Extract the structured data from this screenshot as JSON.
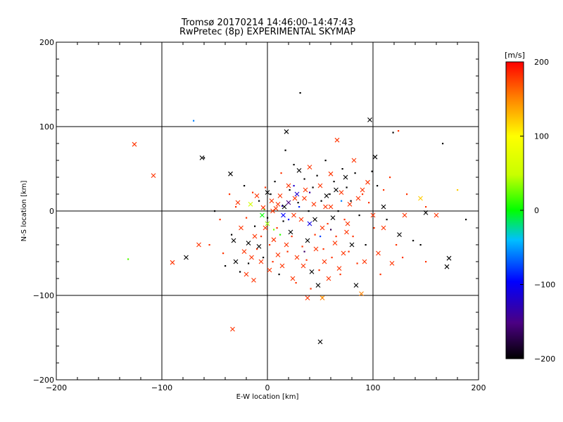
{
  "chart_data": {
    "type": "scatter",
    "title": "Tromsø 20170214 14:46:00–14:47:43",
    "subtitle": "RwPretec (8p) EXPERIMENTAL SKYMAP",
    "xlabel": "E-W location [km]",
    "ylabel": "N-S location [km]",
    "xlim": [
      -200,
      200
    ],
    "ylim": [
      -200,
      200
    ],
    "x_ticks": [
      -200,
      -100,
      0,
      100,
      200
    ],
    "y_ticks": [
      -200,
      -100,
      0,
      100,
      200
    ],
    "x_tick_labels": [
      "−200",
      "−100",
      "0",
      "100",
      "200"
    ],
    "y_tick_labels": [
      "−200",
      "−100",
      "0",
      "100",
      "200"
    ],
    "grid_lines": [
      -100,
      0,
      100
    ],
    "grid": true,
    "colorbar": {
      "label": "[m/s]",
      "range": [
        -200,
        200
      ],
      "ticks": [
        -200,
        -100,
        0,
        100,
        200
      ],
      "tick_labels": [
        "−200",
        "−100",
        "0",
        "100",
        "200"
      ],
      "colormap": [
        "#000000",
        "#4b0082",
        "#0000ff",
        "#00bfff",
        "#00ff00",
        "#c8ff00",
        "#ffff00",
        "#ff8000",
        "#ff0000"
      ]
    },
    "markers_large": [
      {
        "x": -126,
        "y": 79,
        "v": 180
      },
      {
        "x": -108,
        "y": 42,
        "v": 180
      },
      {
        "x": -90,
        "y": -61,
        "v": 180
      },
      {
        "x": -77,
        "y": -55,
        "v": -200
      },
      {
        "x": -65,
        "y": -40,
        "v": 180
      },
      {
        "x": -35,
        "y": 44,
        "v": -200
      },
      {
        "x": -33,
        "y": -140,
        "v": 180
      },
      {
        "x": -32,
        "y": -35,
        "v": -200
      },
      {
        "x": -30,
        "y": -60,
        "v": -200
      },
      {
        "x": -28,
        "y": 10,
        "v": 180
      },
      {
        "x": -25,
        "y": -20,
        "v": 180
      },
      {
        "x": -22,
        "y": -48,
        "v": 180
      },
      {
        "x": -20,
        "y": -75,
        "v": 180
      },
      {
        "x": -18,
        "y": -38,
        "v": -200
      },
      {
        "x": -16,
        "y": 8,
        "v": 60
      },
      {
        "x": -15,
        "y": -55,
        "v": 180
      },
      {
        "x": -13,
        "y": -82,
        "v": 180
      },
      {
        "x": -12,
        "y": -30,
        "v": 180
      },
      {
        "x": -10,
        "y": 18,
        "v": 180
      },
      {
        "x": -8,
        "y": -42,
        "v": -200
      },
      {
        "x": -6,
        "y": -60,
        "v": 180
      },
      {
        "x": -4,
        "y": 4,
        "v": 180
      },
      {
        "x": -2,
        "y": -20,
        "v": 180
      },
      {
        "x": 0,
        "y": 22,
        "v": -200
      },
      {
        "x": 2,
        "y": -70,
        "v": 180
      },
      {
        "x": 4,
        "y": 12,
        "v": 180
      },
      {
        "x": 6,
        "y": -34,
        "v": 180
      },
      {
        "x": 8,
        "y": 3,
        "v": 180
      },
      {
        "x": 10,
        "y": -52,
        "v": 180
      },
      {
        "x": 12,
        "y": 18,
        "v": 180
      },
      {
        "x": 14,
        "y": -65,
        "v": 180
      },
      {
        "x": 16,
        "y": 5,
        "v": -200
      },
      {
        "x": 18,
        "y": -40,
        "v": 180
      },
      {
        "x": 20,
        "y": 30,
        "v": 180
      },
      {
        "x": 22,
        "y": -25,
        "v": -200
      },
      {
        "x": 24,
        "y": -80,
        "v": 180
      },
      {
        "x": 26,
        "y": 15,
        "v": 180
      },
      {
        "x": 28,
        "y": -55,
        "v": 180
      },
      {
        "x": 30,
        "y": 48,
        "v": -200
      },
      {
        "x": 32,
        "y": -10,
        "v": 180
      },
      {
        "x": 34,
        "y": -65,
        "v": 180
      },
      {
        "x": 36,
        "y": 25,
        "v": 180
      },
      {
        "x": 38,
        "y": -35,
        "v": -200
      },
      {
        "x": 40,
        "y": 52,
        "v": 180
      },
      {
        "x": 42,
        "y": -72,
        "v": -200
      },
      {
        "x": 44,
        "y": 8,
        "v": 180
      },
      {
        "x": 46,
        "y": -45,
        "v": 180
      },
      {
        "x": 48,
        "y": -88,
        "v": -200
      },
      {
        "x": 50,
        "y": 30,
        "v": 180
      },
      {
        "x": 52,
        "y": -20,
        "v": 180
      },
      {
        "x": 54,
        "y": -60,
        "v": 180
      },
      {
        "x": 56,
        "y": 18,
        "v": -200
      },
      {
        "x": 58,
        "y": -80,
        "v": 180
      },
      {
        "x": 60,
        "y": 44,
        "v": 180
      },
      {
        "x": 62,
        "y": -8,
        "v": -200
      },
      {
        "x": 64,
        "y": -38,
        "v": 180
      },
      {
        "x": 66,
        "y": 84,
        "v": 180
      },
      {
        "x": 68,
        "y": -68,
        "v": 180
      },
      {
        "x": 70,
        "y": 22,
        "v": 180
      },
      {
        "x": 72,
        "y": -50,
        "v": 180
      },
      {
        "x": 74,
        "y": 40,
        "v": -200
      },
      {
        "x": 76,
        "y": -15,
        "v": 180
      },
      {
        "x": 78,
        "y": 8,
        "v": 180
      },
      {
        "x": 80,
        "y": -40,
        "v": -200
      },
      {
        "x": 82,
        "y": 60,
        "v": 180
      },
      {
        "x": 84,
        "y": -88,
        "v": -200
      },
      {
        "x": 86,
        "y": 15,
        "v": 180
      },
      {
        "x": 89,
        "y": -98,
        "v": 150
      },
      {
        "x": 92,
        "y": -60,
        "v": 180
      },
      {
        "x": 95,
        "y": 34,
        "v": 180
      },
      {
        "x": 97,
        "y": 108,
        "v": -200
      },
      {
        "x": 100,
        "y": -5,
        "v": 180
      },
      {
        "x": 102,
        "y": 64,
        "v": -200
      },
      {
        "x": 105,
        "y": -50,
        "v": 180
      },
      {
        "x": 110,
        "y": 5,
        "v": -200
      },
      {
        "x": 118,
        "y": -62,
        "v": 180
      },
      {
        "x": 125,
        "y": -28,
        "v": -200
      },
      {
        "x": 130,
        "y": -5,
        "v": 180
      },
      {
        "x": 145,
        "y": 15,
        "v": 120
      },
      {
        "x": 150,
        "y": -2,
        "v": -200
      },
      {
        "x": 160,
        "y": -5,
        "v": 180
      },
      {
        "x": 172,
        "y": -56,
        "v": -200
      },
      {
        "x": 170,
        "y": -66,
        "v": -200
      },
      {
        "x": 50,
        "y": -155,
        "v": -200
      },
      {
        "x": 18,
        "y": 94,
        "v": -200
      },
      {
        "x": 38,
        "y": -103,
        "v": 180
      },
      {
        "x": 52,
        "y": -103,
        "v": 150
      },
      {
        "x": -62,
        "y": 63,
        "v": -200
      },
      {
        "x": 5,
        "y": 0,
        "v": 180
      },
      {
        "x": 10,
        "y": 8,
        "v": 180
      },
      {
        "x": 25,
        "y": -5,
        "v": 180
      },
      {
        "x": 35,
        "y": 15,
        "v": 180
      },
      {
        "x": 45,
        "y": -10,
        "v": -200
      },
      {
        "x": 55,
        "y": 5,
        "v": 180
      },
      {
        "x": 65,
        "y": 25,
        "v": -200
      },
      {
        "x": 75,
        "y": -25,
        "v": 180
      },
      {
        "x": -5,
        "y": -5,
        "v": 0
      },
      {
        "x": 0,
        "y": -15,
        "v": 40
      },
      {
        "x": 15,
        "y": -5,
        "v": -100
      },
      {
        "x": 20,
        "y": 10,
        "v": -150
      },
      {
        "x": 28,
        "y": 20,
        "v": -120
      },
      {
        "x": 40,
        "y": -15,
        "v": -110
      },
      {
        "x": 60,
        "y": 5,
        "v": 180
      },
      {
        "x": 90,
        "y": 25,
        "v": 180
      },
      {
        "x": 110,
        "y": -20,
        "v": 180
      }
    ],
    "markers_small": [
      {
        "x": -132,
        "y": -57,
        "v": 20
      },
      {
        "x": -70,
        "y": 107,
        "v": -60
      },
      {
        "x": -60,
        "y": 63,
        "v": -200
      },
      {
        "x": -45,
        "y": -10,
        "v": 180
      },
      {
        "x": -40,
        "y": -65,
        "v": -200
      },
      {
        "x": -36,
        "y": 20,
        "v": 180
      },
      {
        "x": -34,
        "y": -28,
        "v": -200
      },
      {
        "x": -30,
        "y": 5,
        "v": 180
      },
      {
        "x": -26,
        "y": -72,
        "v": -200
      },
      {
        "x": -22,
        "y": 30,
        "v": -200
      },
      {
        "x": -20,
        "y": -8,
        "v": 180
      },
      {
        "x": -18,
        "y": -62,
        "v": -200
      },
      {
        "x": -14,
        "y": 22,
        "v": 180
      },
      {
        "x": -12,
        "y": -18,
        "v": -200
      },
      {
        "x": -10,
        "y": -45,
        "v": 180
      },
      {
        "x": -8,
        "y": 12,
        "v": -200
      },
      {
        "x": -6,
        "y": -30,
        "v": 180
      },
      {
        "x": -4,
        "y": -55,
        "v": -200
      },
      {
        "x": -2,
        "y": 28,
        "v": 180
      },
      {
        "x": 0,
        "y": -8,
        "v": -200
      },
      {
        "x": 2,
        "y": -40,
        "v": 180
      },
      {
        "x": 3,
        "y": 20,
        "v": -200
      },
      {
        "x": 5,
        "y": -60,
        "v": 180
      },
      {
        "x": 7,
        "y": 35,
        "v": -200
      },
      {
        "x": 9,
        "y": -20,
        "v": 180
      },
      {
        "x": 11,
        "y": -75,
        "v": -200
      },
      {
        "x": 13,
        "y": 45,
        "v": 180
      },
      {
        "x": 15,
        "y": -12,
        "v": -200
      },
      {
        "x": 17,
        "y": 72,
        "v": -200
      },
      {
        "x": 19,
        "y": -48,
        "v": 180
      },
      {
        "x": 21,
        "y": 25,
        "v": -200
      },
      {
        "x": 23,
        "y": -30,
        "v": 180
      },
      {
        "x": 25,
        "y": 55,
        "v": -200
      },
      {
        "x": 27,
        "y": -85,
        "v": 180
      },
      {
        "x": 29,
        "y": 10,
        "v": -200
      },
      {
        "x": 31,
        "y": 140,
        "v": -200
      },
      {
        "x": 33,
        "y": -42,
        "v": 180
      },
      {
        "x": 35,
        "y": 38,
        "v": -200
      },
      {
        "x": 37,
        "y": -58,
        "v": 180
      },
      {
        "x": 39,
        "y": 0,
        "v": -200
      },
      {
        "x": 41,
        "y": -92,
        "v": 180
      },
      {
        "x": 43,
        "y": 28,
        "v": -200
      },
      {
        "x": 45,
        "y": -28,
        "v": 180
      },
      {
        "x": 47,
        "y": 42,
        "v": -200
      },
      {
        "x": 49,
        "y": -70,
        "v": 180
      },
      {
        "x": 51,
        "y": 12,
        "v": -200
      },
      {
        "x": 53,
        "y": -45,
        "v": 180
      },
      {
        "x": 55,
        "y": 60,
        "v": -200
      },
      {
        "x": 57,
        "y": -15,
        "v": 180
      },
      {
        "x": 59,
        "y": 20,
        "v": -200
      },
      {
        "x": 61,
        "y": -55,
        "v": 180
      },
      {
        "x": 63,
        "y": 35,
        "v": -200
      },
      {
        "x": 65,
        "y": -30,
        "v": 180
      },
      {
        "x": 67,
        "y": 0,
        "v": -200
      },
      {
        "x": 69,
        "y": -75,
        "v": 180
      },
      {
        "x": 71,
        "y": 50,
        "v": -200
      },
      {
        "x": 73,
        "y": -10,
        "v": 180
      },
      {
        "x": 75,
        "y": 28,
        "v": -200
      },
      {
        "x": 77,
        "y": -48,
        "v": 180
      },
      {
        "x": 79,
        "y": 12,
        "v": -200
      },
      {
        "x": 81,
        "y": -30,
        "v": 180
      },
      {
        "x": 83,
        "y": 45,
        "v": -200
      },
      {
        "x": 85,
        "y": -62,
        "v": 180
      },
      {
        "x": 87,
        "y": -5,
        "v": -200
      },
      {
        "x": 90,
        "y": 20,
        "v": 180
      },
      {
        "x": 93,
        "y": -40,
        "v": -200
      },
      {
        "x": 96,
        "y": 10,
        "v": 180
      },
      {
        "x": 99,
        "y": 47,
        "v": -200
      },
      {
        "x": 101,
        "y": -20,
        "v": 180
      },
      {
        "x": 104,
        "y": 30,
        "v": -200
      },
      {
        "x": 107,
        "y": -75,
        "v": 180
      },
      {
        "x": 110,
        "y": 25,
        "v": 180
      },
      {
        "x": 113,
        "y": -10,
        "v": -200
      },
      {
        "x": 116,
        "y": 40,
        "v": 180
      },
      {
        "x": 119,
        "y": 93,
        "v": -200
      },
      {
        "x": 122,
        "y": -40,
        "v": 180
      },
      {
        "x": 124,
        "y": 95,
        "v": 180
      },
      {
        "x": 128,
        "y": -55,
        "v": 180
      },
      {
        "x": 132,
        "y": 20,
        "v": 180
      },
      {
        "x": 138,
        "y": -35,
        "v": -200
      },
      {
        "x": 145,
        "y": -40,
        "v": -200
      },
      {
        "x": 150,
        "y": 5,
        "v": 180
      },
      {
        "x": 166,
        "y": 80,
        "v": -200
      },
      {
        "x": 180,
        "y": 25,
        "v": 120
      },
      {
        "x": 188,
        "y": -10,
        "v": -200
      },
      {
        "x": 150,
        "y": -60,
        "v": 180
      },
      {
        "x": -55,
        "y": -40,
        "v": 180
      },
      {
        "x": -50,
        "y": 0,
        "v": -200
      },
      {
        "x": -42,
        "y": -50,
        "v": 180
      },
      {
        "x": 20,
        "y": -10,
        "v": -100
      },
      {
        "x": 30,
        "y": 5,
        "v": -90
      },
      {
        "x": 25,
        "y": 30,
        "v": -120
      },
      {
        "x": 50,
        "y": -30,
        "v": -80
      },
      {
        "x": 12,
        "y": -28,
        "v": 10
      },
      {
        "x": 6,
        "y": -22,
        "v": 30
      },
      {
        "x": -3,
        "y": 2,
        "v": 0
      },
      {
        "x": 35,
        "y": -48,
        "v": -160
      },
      {
        "x": 60,
        "y": -22,
        "v": -170
      },
      {
        "x": 70,
        "y": 12,
        "v": -60
      },
      {
        "x": 40,
        "y": 22,
        "v": -140
      },
      {
        "x": 14,
        "y": 6,
        "v": -130
      },
      {
        "x": 52,
        "y": -102,
        "v": 120
      }
    ]
  }
}
